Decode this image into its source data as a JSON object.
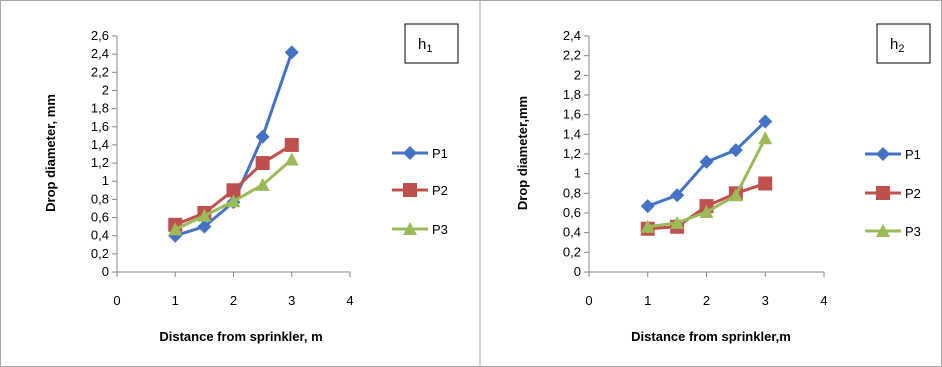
{
  "chart_data": [
    {
      "type": "line",
      "title": "",
      "annotation": {
        "main": "h",
        "sub": "1"
      },
      "xlabel": "Distance from sprinkler, m",
      "ylabel": "Drop diameter, mm",
      "xlim": [
        0,
        4
      ],
      "ylim": [
        0,
        2.6
      ],
      "xticks": [
        "0",
        "1",
        "2",
        "3",
        "4"
      ],
      "yticks": [
        "0",
        "0,2",
        "0,4",
        "0,6",
        "0,8",
        "1",
        "1,2",
        "1,4",
        "1,6",
        "1,8",
        "2",
        "2,2",
        "2,4",
        "2,6"
      ],
      "x": [
        1,
        1.5,
        2,
        2.5,
        3
      ],
      "grid": false,
      "legend_position": "right",
      "series": [
        {
          "name": "P1",
          "color": "#4472C4",
          "marker": "diamond",
          "values": [
            0.4,
            0.5,
            0.77,
            1.49,
            2.42
          ]
        },
        {
          "name": "P2",
          "color": "#C0504D",
          "marker": "square",
          "values": [
            0.52,
            0.65,
            0.9,
            1.2,
            1.4
          ]
        },
        {
          "name": "P3",
          "color": "#9BBB59",
          "marker": "triangle",
          "values": [
            0.47,
            0.62,
            0.78,
            0.96,
            1.24
          ]
        }
      ]
    },
    {
      "type": "line",
      "title": "",
      "annotation": {
        "main": "h",
        "sub": "2"
      },
      "xlabel": "Distance from sprinkler,m",
      "ylabel": "Drop diameter,mm",
      "xlim": [
        0,
        4
      ],
      "ylim": [
        0,
        2.4
      ],
      "xticks": [
        "0",
        "1",
        "2",
        "3",
        "4"
      ],
      "yticks": [
        "0",
        "0,2",
        "0,4",
        "0,6",
        "0,8",
        "1",
        "1,2",
        "1,4",
        "1,6",
        "1,8",
        "2",
        "2,2",
        "2,4"
      ],
      "x": [
        1,
        1.5,
        2,
        2.5,
        3
      ],
      "grid": false,
      "legend_position": "right",
      "series": [
        {
          "name": "P1",
          "color": "#4472C4",
          "marker": "diamond",
          "values": [
            0.67,
            0.78,
            1.12,
            1.24,
            1.53
          ]
        },
        {
          "name": "P2",
          "color": "#C0504D",
          "marker": "square",
          "values": [
            0.44,
            0.46,
            0.67,
            0.8,
            0.9
          ]
        },
        {
          "name": "P3",
          "color": "#9BBB59",
          "marker": "triangle",
          "values": [
            0.46,
            0.5,
            0.61,
            0.78,
            1.36
          ]
        }
      ]
    }
  ]
}
